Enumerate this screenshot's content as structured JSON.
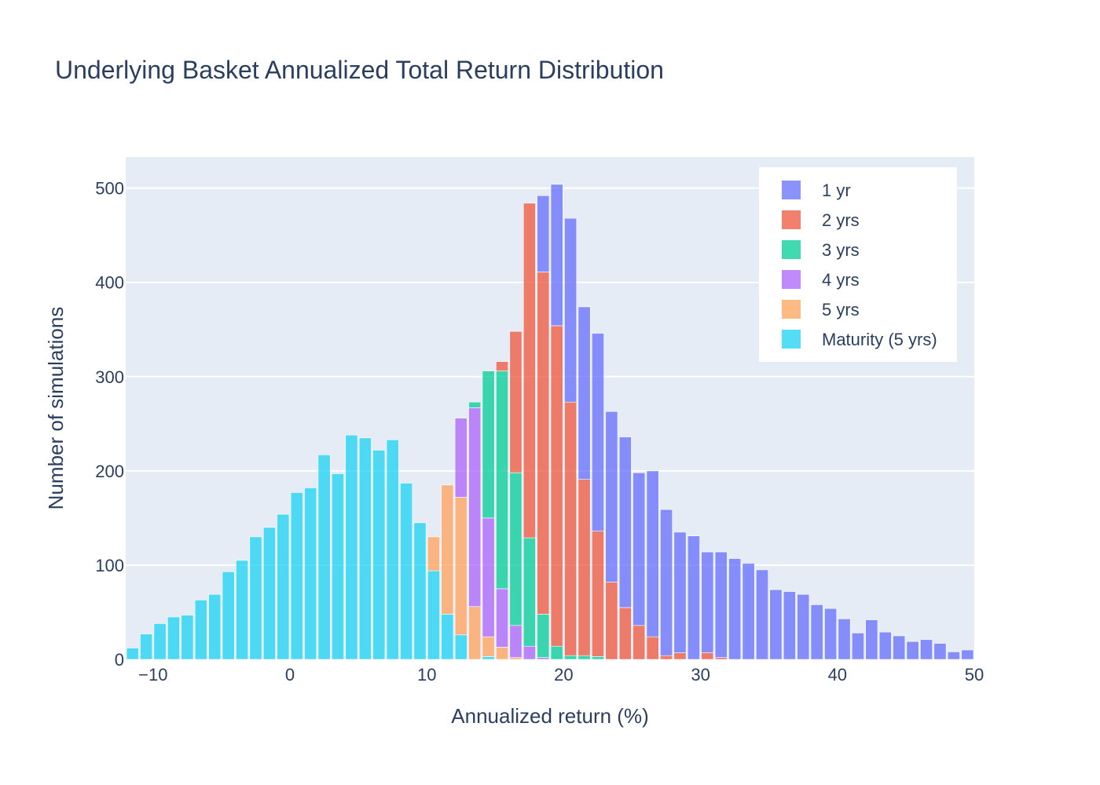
{
  "chart_data": {
    "type": "bar",
    "stacked": true,
    "title": "Underlying Basket Annualized Total Return Distribution",
    "xlabel": "Annualized return (%)",
    "ylabel": "Number of simulations",
    "xlim": [
      -12,
      50
    ],
    "ylim": [
      0,
      533
    ],
    "bin_width": 1,
    "xticks": [
      -10,
      0,
      10,
      20,
      30,
      40,
      50
    ],
    "xtick_labels": [
      "−10",
      "0",
      "10",
      "20",
      "30",
      "40",
      "50"
    ],
    "yticks": [
      0,
      100,
      200,
      300,
      400,
      500
    ],
    "ytick_labels": [
      "0",
      "100",
      "200",
      "300",
      "400",
      "500"
    ],
    "grid": true,
    "plot_background": "#e5ecf6",
    "legend_position": "top-right",
    "series": [
      {
        "name": "Maturity (5 yrs)",
        "color": "#19d3f3",
        "points": [
          [
            -11.5,
            12
          ],
          [
            -10.5,
            27
          ],
          [
            -9.5,
            38
          ],
          [
            -8.5,
            45
          ],
          [
            -7.5,
            47
          ],
          [
            -6.5,
            63
          ],
          [
            -5.5,
            69
          ],
          [
            -4.5,
            93
          ],
          [
            -3.5,
            105
          ],
          [
            -2.5,
            130
          ],
          [
            -1.5,
            140
          ],
          [
            -0.5,
            154
          ],
          [
            0.5,
            177
          ],
          [
            1.5,
            182
          ],
          [
            2.5,
            217
          ],
          [
            3.5,
            197
          ],
          [
            4.5,
            238
          ],
          [
            5.5,
            235
          ],
          [
            6.5,
            222
          ],
          [
            7.5,
            233
          ],
          [
            8.5,
            187
          ],
          [
            9.5,
            145
          ],
          [
            10.5,
            94
          ],
          [
            11.5,
            48
          ],
          [
            12.5,
            26
          ],
          [
            14.5,
            3
          ]
        ]
      },
      {
        "name": "5 yrs",
        "color": "#ffa15a",
        "points": [
          [
            10.5,
            36
          ],
          [
            11.5,
            137
          ],
          [
            12.5,
            146
          ],
          [
            13.5,
            56
          ],
          [
            14.5,
            21
          ],
          [
            15.5,
            13
          ],
          [
            16.5,
            2
          ]
        ]
      },
      {
        "name": "4 yrs",
        "color": "#ab63fa",
        "points": [
          [
            12.5,
            84
          ],
          [
            13.5,
            211
          ],
          [
            14.5,
            126
          ],
          [
            15.5,
            62
          ],
          [
            16.5,
            34
          ],
          [
            17.5,
            14
          ],
          [
            18.5,
            2
          ]
        ]
      },
      {
        "name": "3 yrs",
        "color": "#00cc96",
        "points": [
          [
            13.5,
            6
          ],
          [
            14.5,
            156
          ],
          [
            15.5,
            231
          ],
          [
            16.5,
            162
          ],
          [
            17.5,
            115
          ],
          [
            18.5,
            46
          ],
          [
            19.5,
            14
          ],
          [
            20.5,
            4
          ],
          [
            21.5,
            4
          ],
          [
            22.5,
            3
          ]
        ]
      },
      {
        "name": "2 yrs",
        "color": "#ef553b",
        "points": [
          [
            15.5,
            10
          ],
          [
            16.5,
            150
          ],
          [
            17.5,
            355
          ],
          [
            18.5,
            363
          ],
          [
            19.5,
            340
          ],
          [
            20.5,
            269
          ],
          [
            21.5,
            187
          ],
          [
            22.5,
            133
          ],
          [
            23.5,
            82
          ],
          [
            24.5,
            55
          ],
          [
            25.5,
            36
          ],
          [
            26.5,
            24
          ],
          [
            27.5,
            4
          ],
          [
            28.5,
            7
          ],
          [
            30.5,
            7
          ],
          [
            31.5,
            2
          ]
        ]
      },
      {
        "name": "1 yr",
        "color": "#636efa",
        "points": [
          [
            18.5,
            81
          ],
          [
            19.5,
            150
          ],
          [
            20.5,
            195
          ],
          [
            21.5,
            183
          ],
          [
            22.5,
            210
          ],
          [
            23.5,
            181
          ],
          [
            24.5,
            181
          ],
          [
            25.5,
            162
          ],
          [
            26.5,
            176
          ],
          [
            27.5,
            155
          ],
          [
            28.5,
            128
          ],
          [
            29.5,
            131
          ],
          [
            30.5,
            107
          ],
          [
            31.5,
            112
          ],
          [
            32.5,
            107
          ],
          [
            33.5,
            102
          ],
          [
            34.5,
            95
          ],
          [
            35.5,
            74
          ],
          [
            36.5,
            72
          ],
          [
            37.5,
            69
          ],
          [
            38.5,
            58
          ],
          [
            39.5,
            54
          ],
          [
            40.5,
            43
          ],
          [
            41.5,
            28
          ],
          [
            42.5,
            42
          ],
          [
            43.5,
            29
          ],
          [
            44.5,
            25
          ],
          [
            45.5,
            19
          ],
          [
            46.5,
            21
          ],
          [
            47.5,
            17
          ],
          [
            48.5,
            8
          ],
          [
            49.5,
            10
          ]
        ]
      }
    ]
  }
}
